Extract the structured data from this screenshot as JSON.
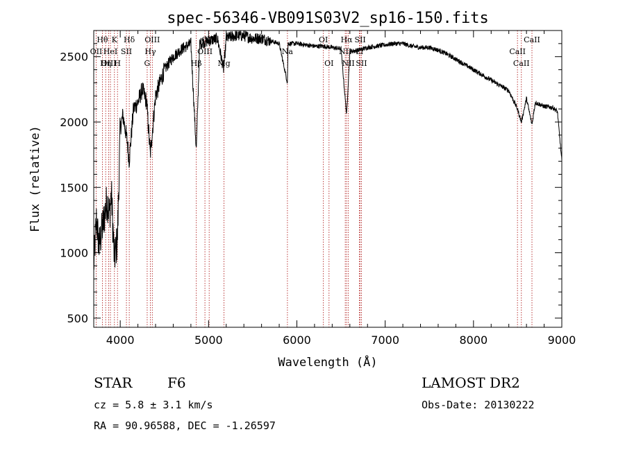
{
  "chart_data": {
    "type": "line",
    "title": "spec-56346-VB091S03V2_sp16-150.fits",
    "xlabel": "Wavelength (Å)",
    "ylabel": "Flux (relative)",
    "xlim": [
      3700,
      9000
    ],
    "ylim": [
      430,
      2700
    ],
    "x_ticks": [
      4000,
      5000,
      6000,
      7000,
      8000,
      9000
    ],
    "y_ticks": [
      500,
      1000,
      1500,
      2000,
      2500
    ],
    "grid": false,
    "spectrum_anchors": [
      [
        3700,
        900
      ],
      [
        3730,
        1250
      ],
      [
        3760,
        1050
      ],
      [
        3800,
        1200
      ],
      [
        3850,
        1400
      ],
      [
        3880,
        1300
      ],
      [
        3900,
        1450
      ],
      [
        3933,
        950
      ],
      [
        3968,
        1100
      ],
      [
        4000,
        1950
      ],
      [
        4030,
        2050
      ],
      [
        4080,
        1850
      ],
      [
        4101,
        1700
      ],
      [
        4150,
        2100
      ],
      [
        4200,
        2150
      ],
      [
        4250,
        2250
      ],
      [
        4300,
        2150
      ],
      [
        4340,
        1750
      ],
      [
        4400,
        2200
      ],
      [
        4450,
        2300
      ],
      [
        4500,
        2400
      ],
      [
        4600,
        2500
      ],
      [
        4700,
        2560
      ],
      [
        4800,
        2600
      ],
      [
        4861,
        1780
      ],
      [
        4900,
        2600
      ],
      [
        5000,
        2620
      ],
      [
        5100,
        2640
      ],
      [
        5172,
        2400
      ],
      [
        5200,
        2640
      ],
      [
        5300,
        2660
      ],
      [
        5400,
        2660
      ],
      [
        5500,
        2640
      ],
      [
        5600,
        2640
      ],
      [
        5700,
        2620
      ],
      [
        5800,
        2600
      ],
      [
        5893,
        2300
      ],
      [
        5900,
        2600
      ],
      [
        6000,
        2600
      ],
      [
        6100,
        2590
      ],
      [
        6200,
        2580
      ],
      [
        6300,
        2580
      ],
      [
        6400,
        2570
      ],
      [
        6500,
        2560
      ],
      [
        6563,
        2050
      ],
      [
        6600,
        2540
      ],
      [
        6700,
        2550
      ],
      [
        6800,
        2570
      ],
      [
        6900,
        2580
      ],
      [
        7000,
        2590
      ],
      [
        7100,
        2600
      ],
      [
        7200,
        2600
      ],
      [
        7300,
        2580
      ],
      [
        7400,
        2570
      ],
      [
        7500,
        2570
      ],
      [
        7600,
        2550
      ],
      [
        7700,
        2520
      ],
      [
        7800,
        2480
      ],
      [
        7900,
        2440
      ],
      [
        8000,
        2400
      ],
      [
        8100,
        2360
      ],
      [
        8200,
        2320
      ],
      [
        8300,
        2280
      ],
      [
        8400,
        2240
      ],
      [
        8498,
        2100
      ],
      [
        8542,
        2000
      ],
      [
        8600,
        2180
      ],
      [
        8662,
        1980
      ],
      [
        8700,
        2150
      ],
      [
        8800,
        2120
      ],
      [
        8900,
        2110
      ],
      [
        8950,
        2080
      ],
      [
        9000,
        1700
      ]
    ],
    "lines": [
      {
        "label": "Hθ",
        "x": 3798,
        "row": 0
      },
      {
        "label": "OII",
        "x": 3727,
        "row": 1
      },
      {
        "label": "OIII",
        "x": 3869,
        "row": 2
      },
      {
        "label": "K",
        "x": 3934,
        "row": 0
      },
      {
        "label": "HeI",
        "x": 3889,
        "row": 1
      },
      {
        "label": "Hη",
        "x": 3835,
        "row": 2
      },
      {
        "label": "Hδ",
        "x": 4102,
        "row": 0
      },
      {
        "label": "SII",
        "x": 4070,
        "row": 1
      },
      {
        "label": "H",
        "x": 3969,
        "row": 2
      },
      {
        "label": "OIII",
        "x": 4363,
        "row": 0
      },
      {
        "label": "Hγ",
        "x": 4341,
        "row": 1
      },
      {
        "label": "G",
        "x": 4305,
        "row": 2
      },
      {
        "label": "OIII",
        "x": 5007,
        "row": 0
      },
      {
        "label": "OIII",
        "x": 4959,
        "row": 1
      },
      {
        "label": "Hβ",
        "x": 4861,
        "row": 2
      },
      {
        "label": "Mg",
        "x": 5175,
        "row": 2
      },
      {
        "label": "Na",
        "x": 5893,
        "row": 1
      },
      {
        "label": "OI",
        "x": 6300,
        "row": 0
      },
      {
        "label": "OI",
        "x": 6364,
        "row": 2
      },
      {
        "label": "Hα",
        "x": 6563,
        "row": 0
      },
      {
        "label": "SII",
        "x": 6717,
        "row": 0
      },
      {
        "label": "NII",
        "x": 6548,
        "row": 1
      },
      {
        "label": "Li",
        "x": 6708,
        "row": 1
      },
      {
        "label": "NII",
        "x": 6583,
        "row": 2
      },
      {
        "label": "SII",
        "x": 6731,
        "row": 2
      },
      {
        "label": "CaII",
        "x": 8662,
        "row": 0
      },
      {
        "label": "CaII",
        "x": 8498,
        "row": 1
      },
      {
        "label": "CaII",
        "x": 8542,
        "row": 2
      }
    ]
  },
  "info": {
    "class": "STAR",
    "subclass": "F6",
    "survey": "LAMOST DR2",
    "cz": "cz = 5.8 ± 3.1 km/s",
    "obs_date": "Obs-Date: 20130222",
    "coords": "RA =  90.96588, DEC =  -1.26597"
  }
}
